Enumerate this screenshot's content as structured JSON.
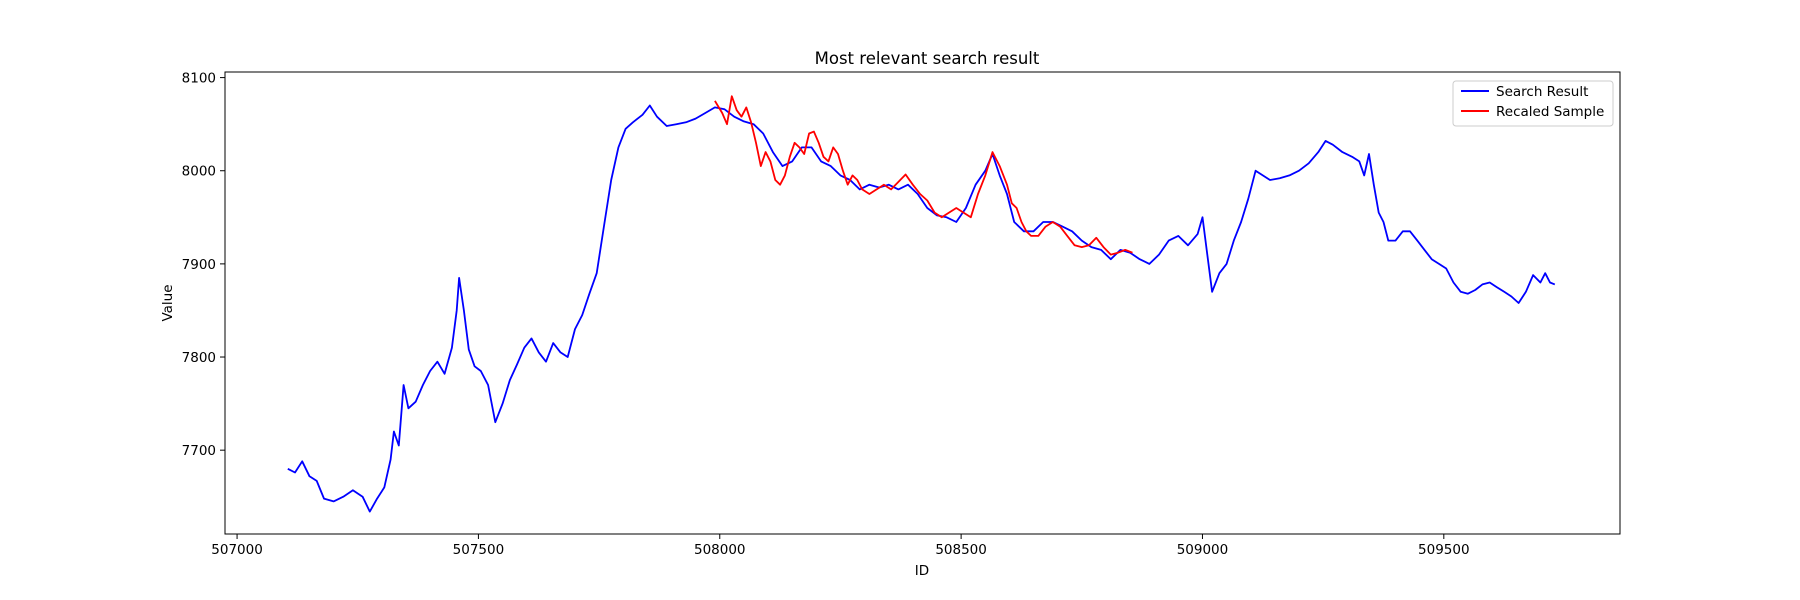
{
  "chart_data": {
    "type": "line",
    "title": "Most relevant search result",
    "xlabel": "ID",
    "ylabel": "Value",
    "xlim": [
      506975,
      509865
    ],
    "ylim": [
      7610,
      8106
    ],
    "xticks": [
      507000,
      507500,
      508000,
      508500,
      509000,
      509500
    ],
    "yticks": [
      7700,
      7800,
      7900,
      8000,
      8100
    ],
    "grid": false,
    "legend_position": "top-right",
    "series": [
      {
        "name": "Search Result",
        "color": "#0000ff",
        "points": [
          [
            507105,
            7680
          ],
          [
            507120,
            7676
          ],
          [
            507135,
            7688
          ],
          [
            507150,
            7672
          ],
          [
            507165,
            7667
          ],
          [
            507180,
            7648
          ],
          [
            507200,
            7645
          ],
          [
            507220,
            7650
          ],
          [
            507240,
            7657
          ],
          [
            507260,
            7650
          ],
          [
            507275,
            7634
          ],
          [
            507290,
            7648
          ],
          [
            507305,
            7660
          ],
          [
            507318,
            7690
          ],
          [
            507325,
            7720
          ],
          [
            507335,
            7705
          ],
          [
            507345,
            7770
          ],
          [
            507355,
            7745
          ],
          [
            507370,
            7752
          ],
          [
            507385,
            7770
          ],
          [
            507400,
            7785
          ],
          [
            507415,
            7795
          ],
          [
            507430,
            7782
          ],
          [
            507445,
            7810
          ],
          [
            507455,
            7850
          ],
          [
            507460,
            7885
          ],
          [
            507470,
            7850
          ],
          [
            507480,
            7808
          ],
          [
            507492,
            7790
          ],
          [
            507505,
            7785
          ],
          [
            507520,
            7770
          ],
          [
            507535,
            7730
          ],
          [
            507550,
            7750
          ],
          [
            507565,
            7775
          ],
          [
            507580,
            7792
          ],
          [
            507595,
            7810
          ],
          [
            507610,
            7820
          ],
          [
            507625,
            7805
          ],
          [
            507640,
            7795
          ],
          [
            507655,
            7815
          ],
          [
            507670,
            7805
          ],
          [
            507685,
            7800
          ],
          [
            507700,
            7830
          ],
          [
            507715,
            7845
          ],
          [
            507730,
            7868
          ],
          [
            507745,
            7890
          ],
          [
            507760,
            7940
          ],
          [
            507775,
            7990
          ],
          [
            507790,
            8025
          ],
          [
            507805,
            8045
          ],
          [
            507820,
            8052
          ],
          [
            507840,
            8060
          ],
          [
            507855,
            8070
          ],
          [
            507870,
            8058
          ],
          [
            507890,
            8048
          ],
          [
            507910,
            8050
          ],
          [
            507930,
            8052
          ],
          [
            507950,
            8056
          ],
          [
            507970,
            8062
          ],
          [
            507990,
            8068
          ],
          [
            508010,
            8066
          ],
          [
            508030,
            8058
          ],
          [
            508050,
            8053
          ],
          [
            508070,
            8050
          ],
          [
            508090,
            8040
          ],
          [
            508110,
            8020
          ],
          [
            508130,
            8005
          ],
          [
            508150,
            8010
          ],
          [
            508170,
            8025
          ],
          [
            508190,
            8025
          ],
          [
            508210,
            8010
          ],
          [
            508230,
            8005
          ],
          [
            508250,
            7995
          ],
          [
            508270,
            7990
          ],
          [
            508290,
            7980
          ],
          [
            508310,
            7985
          ],
          [
            508330,
            7982
          ],
          [
            508350,
            7985
          ],
          [
            508370,
            7980
          ],
          [
            508390,
            7985
          ],
          [
            508410,
            7975
          ],
          [
            508430,
            7960
          ],
          [
            508450,
            7952
          ],
          [
            508470,
            7950
          ],
          [
            508490,
            7945
          ],
          [
            508510,
            7960
          ],
          [
            508530,
            7985
          ],
          [
            508550,
            8000
          ],
          [
            508565,
            8018
          ],
          [
            508580,
            7995
          ],
          [
            508595,
            7975
          ],
          [
            508610,
            7945
          ],
          [
            508630,
            7935
          ],
          [
            508650,
            7935
          ],
          [
            508670,
            7945
          ],
          [
            508690,
            7945
          ],
          [
            508710,
            7940
          ],
          [
            508730,
            7935
          ],
          [
            508750,
            7925
          ],
          [
            508770,
            7918
          ],
          [
            508790,
            7915
          ],
          [
            508810,
            7905
          ],
          [
            508830,
            7915
          ],
          [
            508850,
            7912
          ],
          [
            508870,
            7905
          ],
          [
            508890,
            7900
          ],
          [
            508910,
            7910
          ],
          [
            508930,
            7925
          ],
          [
            508950,
            7930
          ],
          [
            508970,
            7920
          ],
          [
            508990,
            7932
          ],
          [
            509000,
            7950
          ],
          [
            509010,
            7910
          ],
          [
            509020,
            7870
          ],
          [
            509035,
            7890
          ],
          [
            509050,
            7900
          ],
          [
            509065,
            7925
          ],
          [
            509080,
            7945
          ],
          [
            509095,
            7970
          ],
          [
            509110,
            8000
          ],
          [
            509125,
            7995
          ],
          [
            509140,
            7990
          ],
          [
            509160,
            7992
          ],
          [
            509180,
            7995
          ],
          [
            509200,
            8000
          ],
          [
            509220,
            8008
          ],
          [
            509240,
            8020
          ],
          [
            509255,
            8032
          ],
          [
            509270,
            8028
          ],
          [
            509290,
            8020
          ],
          [
            509310,
            8015
          ],
          [
            509325,
            8010
          ],
          [
            509335,
            7995
          ],
          [
            509345,
            8018
          ],
          [
            509355,
            7985
          ],
          [
            509365,
            7955
          ],
          [
            509375,
            7945
          ],
          [
            509385,
            7925
          ],
          [
            509400,
            7925
          ],
          [
            509415,
            7935
          ],
          [
            509430,
            7935
          ],
          [
            509445,
            7925
          ],
          [
            509460,
            7915
          ],
          [
            509475,
            7905
          ],
          [
            509490,
            7900
          ],
          [
            509505,
            7895
          ],
          [
            509520,
            7880
          ],
          [
            509535,
            7870
          ],
          [
            509550,
            7868
          ],
          [
            509565,
            7872
          ],
          [
            509580,
            7878
          ],
          [
            509595,
            7880
          ],
          [
            509610,
            7875
          ],
          [
            509625,
            7870
          ],
          [
            509640,
            7865
          ],
          [
            509655,
            7858
          ],
          [
            509670,
            7870
          ],
          [
            509685,
            7888
          ],
          [
            509700,
            7880
          ],
          [
            509710,
            7890
          ],
          [
            509720,
            7880
          ],
          [
            509730,
            7878
          ]
        ]
      },
      {
        "name": "Recaled Sample",
        "color": "#ff0000",
        "points": [
          [
            507990,
            8075
          ],
          [
            508005,
            8062
          ],
          [
            508015,
            8050
          ],
          [
            508025,
            8080
          ],
          [
            508035,
            8065
          ],
          [
            508045,
            8058
          ],
          [
            508055,
            8068
          ],
          [
            508065,
            8052
          ],
          [
            508075,
            8030
          ],
          [
            508085,
            8005
          ],
          [
            508095,
            8020
          ],
          [
            508105,
            8010
          ],
          [
            508115,
            7990
          ],
          [
            508125,
            7985
          ],
          [
            508135,
            7995
          ],
          [
            508145,
            8015
          ],
          [
            508155,
            8030
          ],
          [
            508165,
            8025
          ],
          [
            508175,
            8018
          ],
          [
            508185,
            8040
          ],
          [
            508195,
            8042
          ],
          [
            508205,
            8030
          ],
          [
            508215,
            8015
          ],
          [
            508225,
            8010
          ],
          [
            508235,
            8025
          ],
          [
            508245,
            8018
          ],
          [
            508255,
            8000
          ],
          [
            508265,
            7985
          ],
          [
            508275,
            7995
          ],
          [
            508285,
            7990
          ],
          [
            508295,
            7980
          ],
          [
            508310,
            7975
          ],
          [
            508325,
            7980
          ],
          [
            508340,
            7985
          ],
          [
            508355,
            7980
          ],
          [
            508370,
            7988
          ],
          [
            508385,
            7996
          ],
          [
            508400,
            7985
          ],
          [
            508415,
            7975
          ],
          [
            508430,
            7968
          ],
          [
            508445,
            7955
          ],
          [
            508460,
            7950
          ],
          [
            508475,
            7955
          ],
          [
            508490,
            7960
          ],
          [
            508505,
            7955
          ],
          [
            508520,
            7950
          ],
          [
            508535,
            7975
          ],
          [
            508550,
            7995
          ],
          [
            508565,
            8020
          ],
          [
            508580,
            8005
          ],
          [
            508595,
            7985
          ],
          [
            508605,
            7965
          ],
          [
            508615,
            7960
          ],
          [
            508625,
            7945
          ],
          [
            508635,
            7935
          ],
          [
            508645,
            7930
          ],
          [
            508660,
            7930
          ],
          [
            508675,
            7940
          ],
          [
            508690,
            7945
          ],
          [
            508705,
            7940
          ],
          [
            508720,
            7930
          ],
          [
            508735,
            7920
          ],
          [
            508750,
            7918
          ],
          [
            508765,
            7920
          ],
          [
            508780,
            7928
          ],
          [
            508795,
            7918
          ],
          [
            508810,
            7910
          ],
          [
            508825,
            7912
          ],
          [
            508840,
            7915
          ],
          [
            508855,
            7912
          ]
        ]
      }
    ]
  }
}
